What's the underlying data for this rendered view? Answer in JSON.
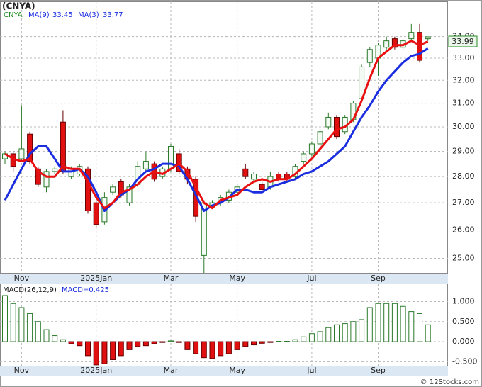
{
  "chart_data": [
    {
      "type": "candlestick",
      "title": "(CNYA)",
      "symbol": "CNYA",
      "categories": [
        null,
        null,
        "Nov",
        null,
        null,
        null,
        null,
        null,
        null,
        null,
        null,
        "2025Jan",
        null,
        null,
        null,
        null,
        null,
        null,
        null,
        null,
        "Mar",
        null,
        null,
        null,
        null,
        null,
        null,
        null,
        "May",
        null,
        null,
        null,
        null,
        null,
        null,
        null,
        null,
        "Jul",
        null,
        null,
        null,
        null,
        null,
        null,
        null,
        "Sep",
        null,
        null,
        null,
        null,
        null,
        null
      ],
      "open": [
        28.7,
        28.9,
        28.7,
        29.7,
        28.3,
        27.6,
        28.2,
        30.2,
        28.0,
        28.1,
        28.3,
        27.0,
        26.3,
        27.4,
        27.8,
        27.0,
        27.7,
        28.3,
        28.5,
        28.0,
        28.3,
        28.9,
        28.3,
        27.9,
        25.1,
        26.9,
        27.0,
        27.1,
        27.4,
        28.3,
        27.9,
        27.7,
        27.6,
        28.1,
        28.1,
        28.0,
        28.6,
        28.9,
        29.3,
        30.0,
        30.4,
        29.8,
        30.3,
        31.2,
        32.8,
        33.0,
        33.5,
        33.9,
        33.5,
        33.9,
        34.2,
        33.9
      ],
      "high": [
        29.0,
        29.0,
        30.9,
        29.8,
        28.4,
        28.3,
        28.4,
        30.7,
        28.4,
        28.5,
        28.4,
        27.1,
        27.4,
        27.7,
        27.9,
        27.7,
        28.6,
        29.0,
        28.6,
        28.4,
        29.3,
        29.1,
        28.4,
        28.0,
        27.1,
        27.1,
        27.3,
        27.5,
        27.7,
        28.5,
        28.2,
        27.8,
        28.2,
        28.2,
        28.2,
        28.5,
        29.0,
        29.4,
        29.9,
        30.6,
        30.5,
        30.5,
        31.1,
        32.7,
        33.5,
        33.7,
        34.0,
        34.0,
        33.9,
        34.6,
        34.6,
        34.0
      ],
      "low": [
        28.5,
        28.2,
        28.6,
        28.5,
        27.6,
        27.4,
        28.1,
        28.1,
        27.9,
        28.0,
        26.6,
        26.1,
        26.2,
        27.3,
        27.2,
        26.9,
        27.6,
        28.2,
        27.8,
        27.9,
        28.2,
        28.1,
        27.7,
        26.3,
        24.5,
        26.8,
        26.9,
        27.0,
        27.3,
        27.9,
        27.8,
        27.4,
        27.5,
        27.8,
        27.8,
        27.9,
        28.5,
        28.8,
        29.2,
        29.9,
        29.5,
        29.7,
        30.2,
        31.1,
        32.6,
        32.2,
        33.4,
        33.4,
        33.4,
        33.8,
        32.8,
        33.8
      ],
      "close": [
        28.9,
        28.4,
        29.1,
        28.6,
        27.7,
        28.2,
        28.3,
        28.2,
        28.3,
        28.4,
        26.7,
        26.2,
        27.2,
        27.6,
        27.3,
        27.6,
        28.4,
        28.6,
        27.9,
        28.3,
        29.2,
        28.2,
        27.9,
        26.5,
        27.0,
        27.0,
        27.2,
        27.4,
        27.6,
        28.0,
        28.1,
        27.5,
        28.0,
        27.9,
        27.9,
        28.4,
        28.9,
        29.3,
        29.8,
        30.4,
        29.6,
        30.4,
        31.0,
        32.6,
        33.4,
        33.6,
        33.8,
        33.5,
        33.8,
        34.2,
        32.9,
        33.99
      ],
      "up_color": "#2a7a2a",
      "down_color": "#e01010",
      "series": [
        {
          "name": "MA(9)",
          "label_value": 33.45,
          "color": "#1a2ee0",
          "values": [
            27.1,
            27.7,
            28.3,
            28.9,
            29.2,
            29.2,
            28.7,
            28.2,
            28.2,
            28.3,
            28.0,
            27.4,
            26.7,
            27.0,
            27.3,
            27.5,
            27.9,
            28.2,
            28.3,
            28.5,
            28.5,
            28.4,
            27.9,
            27.3,
            26.7,
            26.9,
            27.0,
            27.2,
            27.5,
            27.5,
            27.4,
            27.4,
            27.6,
            27.7,
            27.8,
            27.9,
            28.1,
            28.2,
            28.4,
            28.6,
            28.9,
            29.2,
            29.8,
            30.4,
            30.9,
            31.5,
            32.0,
            32.4,
            32.8,
            33.1,
            33.2,
            33.45
          ]
        },
        {
          "name": "MA(3)",
          "label_value": 33.77,
          "color": "#e81010",
          "values": [
            28.9,
            28.7,
            28.6,
            28.7,
            28.2,
            28.0,
            28.0,
            28.4,
            28.3,
            28.3,
            27.8,
            27.2,
            26.8,
            27.0,
            27.4,
            27.5,
            27.7,
            28.0,
            28.2,
            28.1,
            28.3,
            28.5,
            28.2,
            27.6,
            27.0,
            26.8,
            27.1,
            27.2,
            27.3,
            27.6,
            27.8,
            27.9,
            27.8,
            27.9,
            27.9,
            28.1,
            28.4,
            28.7,
            29.1,
            29.5,
            29.9,
            30.0,
            30.3,
            31.1,
            32.1,
            33.0,
            33.3,
            33.6,
            33.6,
            33.8,
            33.6,
            33.77
          ]
        }
      ],
      "last_price": 33.99,
      "ylim": [
        24.5,
        35.7
      ],
      "log_scale": true,
      "yticks": [
        {
          "value": 25,
          "label": "25.00"
        },
        {
          "value": 26,
          "label": "26.00"
        },
        {
          "value": 27,
          "label": "27.00"
        },
        {
          "value": 28,
          "label": "28.00"
        },
        {
          "value": 29,
          "label": "29.00"
        },
        {
          "value": 30,
          "label": "30.00"
        },
        {
          "value": 31,
          "label": "31.00"
        },
        {
          "value": 32,
          "label": "32.00"
        },
        {
          "value": 33,
          "label": "33.00"
        },
        {
          "value": 34,
          "label": "34.00"
        }
      ],
      "grid": true
    },
    {
      "type": "bar",
      "title": "MACD(26,12,9)",
      "subtitle": "MACD=0.425",
      "categories": [
        null,
        null,
        "Nov",
        null,
        null,
        null,
        null,
        null,
        null,
        null,
        null,
        "2025Jan",
        null,
        null,
        null,
        null,
        null,
        null,
        null,
        null,
        "Mar",
        null,
        null,
        null,
        null,
        null,
        null,
        null,
        "May",
        null,
        null,
        null,
        null,
        null,
        null,
        null,
        null,
        "Jul",
        null,
        null,
        null,
        null,
        null,
        null,
        null,
        "Sep",
        null,
        null,
        null,
        null,
        null,
        null
      ],
      "values": [
        1.15,
        0.95,
        0.85,
        0.7,
        0.5,
        0.3,
        0.15,
        0.05,
        -0.05,
        -0.1,
        -0.35,
        -0.58,
        -0.55,
        -0.45,
        -0.35,
        -0.2,
        -0.12,
        -0.1,
        -0.05,
        -0.02,
        0.02,
        -0.02,
        -0.2,
        -0.3,
        -0.4,
        -0.42,
        -0.35,
        -0.3,
        -0.2,
        -0.12,
        -0.08,
        -0.04,
        -0.02,
        0.01,
        0.01,
        0.05,
        0.12,
        0.2,
        0.25,
        0.35,
        0.42,
        0.45,
        0.5,
        0.55,
        0.85,
        0.95,
        0.95,
        0.95,
        0.88,
        0.75,
        0.7,
        0.42
      ],
      "up_color": "#2a7a2a",
      "down_color": "#e01010",
      "ylim": [
        -0.6,
        1.45
      ],
      "yticks": [
        {
          "value": -0.5,
          "label": "-0.500"
        },
        {
          "value": 0,
          "label": "0.000"
        },
        {
          "value": 0.5,
          "label": "0.500"
        },
        {
          "value": 1,
          "label": "1.000"
        }
      ],
      "grid": true,
      "footer": "© 12Stocks.com"
    }
  ]
}
